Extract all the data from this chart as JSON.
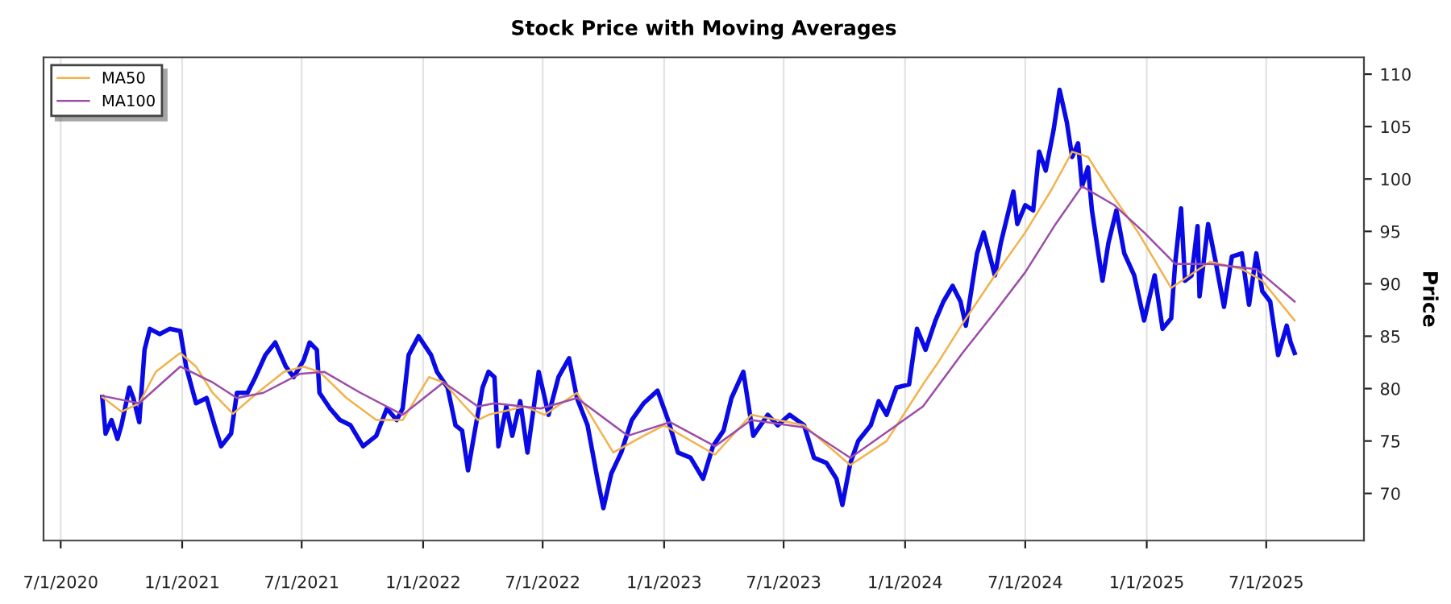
{
  "chart_data": {
    "type": "line",
    "title": "Stock Price with Moving Averages",
    "ylabel": "Price",
    "xlim": [
      "2020-06-05",
      "2025-11-26"
    ],
    "ylim": [
      65.5,
      111.6
    ],
    "xticks": [
      {
        "value": "2020-07-01",
        "label": "7/1/2020"
      },
      {
        "value": "2021-01-01",
        "label": "1/1/2021"
      },
      {
        "value": "2021-07-01",
        "label": "7/1/2021"
      },
      {
        "value": "2022-01-01",
        "label": "1/1/2022"
      },
      {
        "value": "2022-07-01",
        "label": "7/1/2022"
      },
      {
        "value": "2023-01-01",
        "label": "1/1/2023"
      },
      {
        "value": "2023-07-01",
        "label": "7/1/2023"
      },
      {
        "value": "2024-01-01",
        "label": "1/1/2024"
      },
      {
        "value": "2024-07-01",
        "label": "7/1/2024"
      },
      {
        "value": "2025-01-01",
        "label": "1/1/2025"
      },
      {
        "value": "2025-07-01",
        "label": "7/1/2025"
      }
    ],
    "yticks": [
      70,
      75,
      80,
      85,
      90,
      95,
      100,
      105,
      110
    ],
    "grid": "x",
    "legend": "top left",
    "series": [
      {
        "color": "#0a0ae6",
        "x": [
          "2020-09-02",
          "2020-09-07",
          "2020-09-16",
          "2020-09-25",
          "2020-10-01",
          "2020-10-13",
          "2020-10-19",
          "2020-10-28",
          "2020-11-05",
          "2020-11-13",
          "2020-11-28",
          "2020-12-13",
          "2020-12-29",
          "2021-01-07",
          "2021-01-22",
          "2021-02-07",
          "2021-02-19",
          "2021-03-01",
          "2021-03-16",
          "2021-03-25",
          "2021-04-10",
          "2021-04-22",
          "2021-05-07",
          "2021-05-22",
          "2021-06-07",
          "2021-06-19",
          "2021-07-04",
          "2021-07-13",
          "2021-07-24",
          "2021-07-28",
          "2021-08-13",
          "2021-08-28",
          "2021-09-13",
          "2021-10-02",
          "2021-10-22",
          "2021-11-07",
          "2021-11-22",
          "2021-12-01",
          "2021-12-10",
          "2021-12-25",
          "2022-01-13",
          "2022-01-22",
          "2022-02-07",
          "2022-02-19",
          "2022-03-01",
          "2022-03-10",
          "2022-03-19",
          "2022-04-01",
          "2022-04-10",
          "2022-04-19",
          "2022-04-25",
          "2022-05-07",
          "2022-05-16",
          "2022-05-28",
          "2022-06-08",
          "2022-06-25",
          "2022-07-10",
          "2022-07-25",
          "2022-08-10",
          "2022-08-22",
          "2022-09-07",
          "2022-09-22",
          "2022-10-01",
          "2022-10-13",
          "2022-10-28",
          "2022-11-13",
          "2022-12-01",
          "2022-12-22",
          "2023-01-07",
          "2023-01-22",
          "2023-02-10",
          "2023-03-01",
          "2023-03-16",
          "2023-04-01",
          "2023-04-13",
          "2023-05-01",
          "2023-05-16",
          "2023-06-07",
          "2023-06-22",
          "2023-07-10",
          "2023-08-01",
          "2023-08-16",
          "2023-09-04",
          "2023-09-19",
          "2023-09-28",
          "2023-10-10",
          "2023-10-22",
          "2023-11-10",
          "2023-11-22",
          "2023-12-04",
          "2023-12-19",
          "2024-01-07",
          "2024-01-19",
          "2024-02-01",
          "2024-02-16",
          "2024-02-28",
          "2024-03-13",
          "2024-03-25",
          "2024-04-02",
          "2024-04-19",
          "2024-04-29",
          "2024-05-16",
          "2024-05-25",
          "2024-06-13",
          "2024-06-19",
          "2024-07-01",
          "2024-07-13",
          "2024-07-22",
          "2024-08-01",
          "2024-08-13",
          "2024-08-22",
          "2024-09-02",
          "2024-09-10",
          "2024-09-19",
          "2024-09-25",
          "2024-10-04",
          "2024-10-10",
          "2024-10-26",
          "2024-11-04",
          "2024-11-16",
          "2024-11-28",
          "2024-12-13",
          "2024-12-28",
          "2025-01-13",
          "2025-01-25",
          "2025-02-07",
          "2025-02-13",
          "2025-02-22",
          "2025-02-28",
          "2025-03-10",
          "2025-03-19",
          "2025-03-22",
          "2025-04-04",
          "2025-04-16",
          "2025-04-28",
          "2025-05-10",
          "2025-05-25",
          "2025-06-05",
          "2025-06-16",
          "2025-06-25",
          "2025-07-07",
          "2025-07-19",
          "2025-08-01",
          "2025-08-07",
          "2025-08-13"
        ],
        "values": [
          79.2,
          75.7,
          77.0,
          75.2,
          76.5,
          80.1,
          79.1,
          76.8,
          83.7,
          85.7,
          85.2,
          85.7,
          85.5,
          82.1,
          78.6,
          79.1,
          76.5,
          74.5,
          75.7,
          79.6,
          79.6,
          81.1,
          83.2,
          84.4,
          82.1,
          81.1,
          82.7,
          84.4,
          83.7,
          79.6,
          78.1,
          77.0,
          76.5,
          74.5,
          75.5,
          78.1,
          77.0,
          78.1,
          83.2,
          85.0,
          83.2,
          81.6,
          80.1,
          76.5,
          76.0,
          72.2,
          75.5,
          80.1,
          81.6,
          81.1,
          74.5,
          78.3,
          75.5,
          78.8,
          73.9,
          81.6,
          77.5,
          81.1,
          82.9,
          79.1,
          76.5,
          71.4,
          68.6,
          71.9,
          73.9,
          77.0,
          78.6,
          79.8,
          77.0,
          73.9,
          73.4,
          71.4,
          74.5,
          76.0,
          79.1,
          81.6,
          75.5,
          77.5,
          76.5,
          77.5,
          76.5,
          73.4,
          72.9,
          71.4,
          68.9,
          72.9,
          75.0,
          76.5,
          78.8,
          77.5,
          80.1,
          80.4,
          85.7,
          83.7,
          86.5,
          88.3,
          89.8,
          88.3,
          86.0,
          92.9,
          94.9,
          90.8,
          93.9,
          98.8,
          95.7,
          97.5,
          97.0,
          102.6,
          100.8,
          104.7,
          108.5,
          105.4,
          102.1,
          103.4,
          99.3,
          101.1,
          97.0,
          90.3,
          93.9,
          97.0,
          92.9,
          90.8,
          86.5,
          90.8,
          85.7,
          86.7,
          91.9,
          97.2,
          90.3,
          90.8,
          95.5,
          88.8,
          95.7,
          91.9,
          87.8,
          92.6,
          92.9,
          88.0,
          92.9,
          89.3,
          88.3,
          83.2,
          86.0,
          84.4,
          83.4
        ]
      },
      {
        "name": "MA50",
        "color": "#f2b24c",
        "x": [
          "2020-09-02",
          "2020-10-01",
          "2020-10-28",
          "2020-11-22",
          "2020-12-29",
          "2021-01-22",
          "2021-02-16",
          "2021-03-19",
          "2021-04-25",
          "2021-06-04",
          "2021-07-04",
          "2021-07-28",
          "2021-09-07",
          "2021-10-22",
          "2021-12-01",
          "2022-01-10",
          "2022-02-01",
          "2022-03-01",
          "2022-03-25",
          "2022-04-10",
          "2022-06-04",
          "2022-07-04",
          "2022-08-22",
          "2022-10-16",
          "2022-12-01",
          "2023-01-01",
          "2023-03-19",
          "2023-05-13",
          "2023-08-01",
          "2023-10-10",
          "2023-12-04",
          "2024-01-28",
          "2024-02-19",
          "2024-03-28",
          "2024-05-16",
          "2024-07-01",
          "2024-08-10",
          "2024-09-10",
          "2024-10-04",
          "2024-11-04",
          "2024-12-19",
          "2025-02-07",
          "2025-03-07",
          "2025-04-07",
          "2025-05-25",
          "2025-06-25",
          "2025-08-13"
        ],
        "values": [
          79.2,
          77.8,
          78.6,
          81.6,
          83.4,
          82.1,
          79.6,
          77.6,
          79.6,
          81.6,
          82.1,
          81.6,
          79.1,
          77.0,
          77.0,
          81.1,
          80.6,
          78.6,
          77.0,
          77.5,
          78.3,
          77.5,
          79.6,
          73.9,
          75.5,
          76.5,
          73.7,
          77.5,
          76.5,
          72.7,
          75.0,
          80.4,
          82.4,
          86.2,
          90.8,
          94.9,
          99.0,
          102.6,
          102.1,
          99.0,
          94.9,
          89.6,
          90.8,
          92.1,
          91.4,
          90.3,
          86.5
        ]
      },
      {
        "name": "MA100",
        "color": "#9c4ca8",
        "x": [
          "2020-09-02",
          "2020-10-28",
          "2020-12-29",
          "2021-02-16",
          "2021-03-25",
          "2021-05-04",
          "2021-06-28",
          "2021-08-04",
          "2021-09-28",
          "2021-12-01",
          "2022-02-01",
          "2022-03-25",
          "2022-04-19",
          "2022-06-28",
          "2022-08-22",
          "2022-11-07",
          "2023-01-10",
          "2023-03-19",
          "2023-05-13",
          "2023-08-01",
          "2023-10-10",
          "2023-12-19",
          "2024-01-28",
          "2024-03-28",
          "2024-05-16",
          "2024-07-01",
          "2024-08-16",
          "2024-09-25",
          "2024-11-13",
          "2024-12-28",
          "2025-02-13",
          "2025-04-07",
          "2025-06-16",
          "2025-08-13"
        ],
        "values": [
          79.3,
          78.6,
          82.1,
          80.6,
          79.1,
          79.6,
          81.4,
          81.6,
          79.6,
          77.5,
          80.6,
          78.3,
          78.6,
          78.1,
          79.1,
          75.5,
          76.8,
          74.5,
          77.0,
          76.3,
          73.4,
          76.5,
          78.3,
          83.4,
          87.3,
          91.1,
          95.7,
          99.3,
          97.5,
          94.9,
          91.9,
          91.9,
          91.4,
          88.3
        ]
      }
    ]
  }
}
